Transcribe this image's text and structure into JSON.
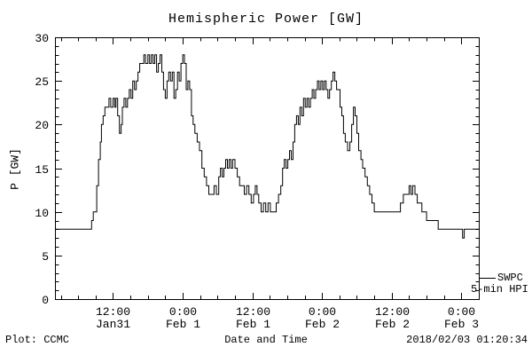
{
  "footer": {
    "left": "Plot: CCMC",
    "right": "2018/02/03 01:20:34"
  },
  "chart_data": {
    "type": "line",
    "title": "Hemispheric Power [GW]",
    "xlabel": "Date and Time",
    "ylabel": "P [GW]",
    "xlim": [
      2,
      75
    ],
    "ylim": [
      0,
      30
    ],
    "x_unit": "hours since 2018-01-31 00:00",
    "grid": false,
    "step": true,
    "legend_lines": [
      "SWPC",
      "5-min HPI"
    ],
    "legend_position": "outside-right-bottom",
    "yticks": [
      0,
      5,
      10,
      15,
      20,
      25,
      30
    ],
    "y_minor_step": 1,
    "x_minor_step": 3,
    "xticks": [
      {
        "pos": 12,
        "time": "12:00",
        "date": "Jan31"
      },
      {
        "pos": 24,
        "time": "0:00",
        "date": "Feb 1"
      },
      {
        "pos": 36,
        "time": "12:00",
        "date": "Feb 1"
      },
      {
        "pos": 48,
        "time": "0:00",
        "date": "Feb 2"
      },
      {
        "pos": 60,
        "time": "12:00",
        "date": "Feb 2"
      },
      {
        "pos": 72,
        "time": "0:00",
        "date": "Feb 3"
      }
    ],
    "series": [
      {
        "name": "SWPC 5-min HPI",
        "points": [
          [
            2,
            8
          ],
          [
            8,
            8
          ],
          [
            8.3,
            9
          ],
          [
            8.6,
            10
          ],
          [
            9,
            10
          ],
          [
            9.2,
            13
          ],
          [
            9.5,
            16
          ],
          [
            9.8,
            18
          ],
          [
            10,
            20
          ],
          [
            10.3,
            21
          ],
          [
            10.6,
            22
          ],
          [
            11,
            22
          ],
          [
            11.3,
            23
          ],
          [
            11.6,
            22
          ],
          [
            12,
            23
          ],
          [
            12.3,
            22
          ],
          [
            12.5,
            23
          ],
          [
            12.8,
            21
          ],
          [
            13.1,
            19
          ],
          [
            13.4,
            20
          ],
          [
            13.6,
            22
          ],
          [
            13.9,
            23
          ],
          [
            14.2,
            22
          ],
          [
            14.5,
            23
          ],
          [
            14.8,
            24
          ],
          [
            15.1,
            23
          ],
          [
            15.4,
            25
          ],
          [
            15.7,
            24
          ],
          [
            16,
            25
          ],
          [
            16.3,
            26
          ],
          [
            16.6,
            27
          ],
          [
            17,
            27
          ],
          [
            17.3,
            28
          ],
          [
            17.6,
            27
          ],
          [
            18,
            28
          ],
          [
            18.3,
            27
          ],
          [
            18.6,
            28
          ],
          [
            18.9,
            27
          ],
          [
            19.2,
            28
          ],
          [
            19.5,
            26
          ],
          [
            19.8,
            27
          ],
          [
            20.1,
            28
          ],
          [
            20.4,
            26
          ],
          [
            20.7,
            24
          ],
          [
            21,
            23
          ],
          [
            21.3,
            25
          ],
          [
            21.6,
            26
          ],
          [
            21.9,
            25
          ],
          [
            22.2,
            26
          ],
          [
            22.5,
            23
          ],
          [
            22.8,
            24
          ],
          [
            23.1,
            26
          ],
          [
            23.4,
            25
          ],
          [
            23.7,
            27
          ],
          [
            24,
            28
          ],
          [
            24.3,
            27
          ],
          [
            24.6,
            24
          ],
          [
            24.9,
            25
          ],
          [
            25.2,
            24
          ],
          [
            25.5,
            21
          ],
          [
            25.8,
            20
          ],
          [
            26.1,
            19
          ],
          [
            26.5,
            18
          ],
          [
            26.9,
            17
          ],
          [
            27.3,
            15
          ],
          [
            27.7,
            14
          ],
          [
            28.1,
            13
          ],
          [
            28.5,
            12
          ],
          [
            29,
            12
          ],
          [
            29.4,
            13
          ],
          [
            29.8,
            12
          ],
          [
            30.2,
            14
          ],
          [
            30.5,
            15
          ],
          [
            30.8,
            14
          ],
          [
            31.1,
            15
          ],
          [
            31.4,
            16
          ],
          [
            31.7,
            15
          ],
          [
            32,
            16
          ],
          [
            32.3,
            15
          ],
          [
            32.6,
            16
          ],
          [
            33,
            15
          ],
          [
            33.4,
            14
          ],
          [
            33.8,
            13
          ],
          [
            34.2,
            13
          ],
          [
            34.6,
            12
          ],
          [
            35,
            13
          ],
          [
            35.4,
            12
          ],
          [
            35.8,
            11
          ],
          [
            36.2,
            12
          ],
          [
            36.5,
            13
          ],
          [
            36.8,
            12
          ],
          [
            37.1,
            11
          ],
          [
            37.5,
            10
          ],
          [
            37.9,
            11
          ],
          [
            38.3,
            10
          ],
          [
            38.7,
            11
          ],
          [
            39.1,
            10
          ],
          [
            39.6,
            10
          ],
          [
            40.1,
            11
          ],
          [
            40.5,
            12
          ],
          [
            40.9,
            13
          ],
          [
            41.2,
            15
          ],
          [
            41.5,
            16
          ],
          [
            41.8,
            15
          ],
          [
            42.1,
            16
          ],
          [
            42.4,
            17
          ],
          [
            42.7,
            16
          ],
          [
            43,
            18
          ],
          [
            43.3,
            20
          ],
          [
            43.6,
            21
          ],
          [
            43.9,
            20
          ],
          [
            44.2,
            22
          ],
          [
            44.5,
            21
          ],
          [
            44.8,
            23
          ],
          [
            45.1,
            22
          ],
          [
            45.4,
            23
          ],
          [
            45.7,
            22
          ],
          [
            46,
            23
          ],
          [
            46.3,
            24
          ],
          [
            46.6,
            23
          ],
          [
            46.9,
            24
          ],
          [
            47.2,
            25
          ],
          [
            47.5,
            24
          ],
          [
            47.8,
            25
          ],
          [
            48.1,
            24
          ],
          [
            48.4,
            25
          ],
          [
            48.7,
            24
          ],
          [
            49,
            23
          ],
          [
            49.3,
            24
          ],
          [
            49.6,
            25
          ],
          [
            49.9,
            26
          ],
          [
            50.2,
            25
          ],
          [
            50.5,
            24
          ],
          [
            50.8,
            24
          ],
          [
            51.1,
            22
          ],
          [
            51.4,
            21
          ],
          [
            51.7,
            19
          ],
          [
            52,
            18
          ],
          [
            52.4,
            17
          ],
          [
            52.8,
            18
          ],
          [
            53.1,
            20
          ],
          [
            53.4,
            22
          ],
          [
            53.7,
            21
          ],
          [
            54,
            19
          ],
          [
            54.3,
            17
          ],
          [
            54.7,
            16
          ],
          [
            55,
            15
          ],
          [
            55.4,
            14
          ],
          [
            55.8,
            13
          ],
          [
            56.2,
            12
          ],
          [
            56.6,
            11
          ],
          [
            57,
            10
          ],
          [
            58,
            10
          ],
          [
            59,
            10
          ],
          [
            60,
            10
          ],
          [
            61,
            10
          ],
          [
            61.5,
            11
          ],
          [
            62,
            12
          ],
          [
            62.5,
            12
          ],
          [
            63,
            13
          ],
          [
            63.3,
            12
          ],
          [
            63.6,
            13
          ],
          [
            64,
            12
          ],
          [
            64.4,
            11
          ],
          [
            64.8,
            11
          ],
          [
            65.2,
            10
          ],
          [
            65.6,
            10
          ],
          [
            66,
            9
          ],
          [
            66.5,
            9
          ],
          [
            67,
            9
          ],
          [
            67.5,
            9
          ],
          [
            68,
            8
          ],
          [
            69,
            8
          ],
          [
            70,
            8
          ],
          [
            71,
            8
          ],
          [
            71.9,
            8
          ],
          [
            72.2,
            7
          ],
          [
            72.5,
            8
          ],
          [
            73,
            8
          ],
          [
            75,
            8
          ]
        ]
      }
    ]
  }
}
